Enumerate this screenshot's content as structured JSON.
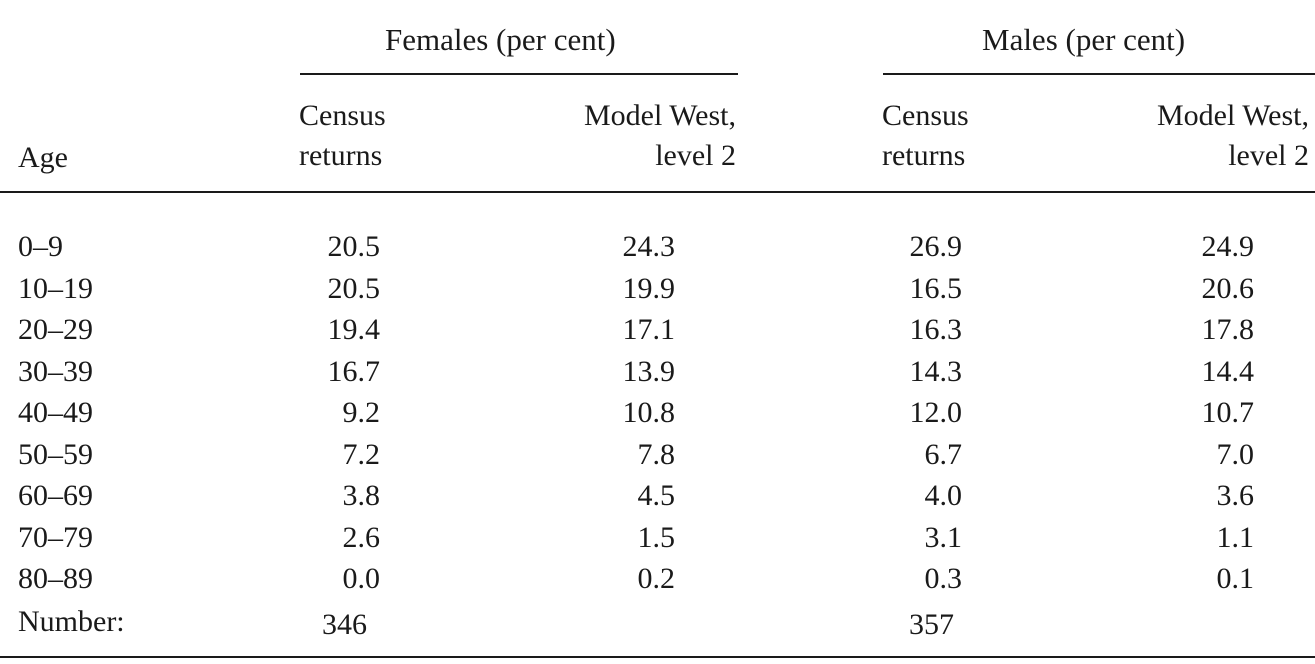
{
  "table": {
    "group_headers": {
      "females": "Females (per cent)",
      "males": "Males (per cent)"
    },
    "column_headers": {
      "age": "Age",
      "census_line1": "Census",
      "census_line2": "returns",
      "model_line1": "Model West,",
      "model_line2": "level 2"
    },
    "rows": [
      {
        "age": "0–9",
        "f_census": "20.5",
        "f_model": "24.3",
        "m_census": "26.9",
        "m_model": "24.9"
      },
      {
        "age": "10–19",
        "f_census": "20.5",
        "f_model": "19.9",
        "m_census": "16.5",
        "m_model": "20.6"
      },
      {
        "age": "20–29",
        "f_census": "19.4",
        "f_model": "17.1",
        "m_census": "16.3",
        "m_model": "17.8"
      },
      {
        "age": "30–39",
        "f_census": "16.7",
        "f_model": "13.9",
        "m_census": "14.3",
        "m_model": "14.4"
      },
      {
        "age": "40–49",
        "f_census": "9.2",
        "f_model": "10.8",
        "m_census": "12.0",
        "m_model": "10.7"
      },
      {
        "age": "50–59",
        "f_census": "7.2",
        "f_model": "7.8",
        "m_census": "6.7",
        "m_model": "7.0"
      },
      {
        "age": "60–69",
        "f_census": "3.8",
        "f_model": "4.5",
        "m_census": "4.0",
        "m_model": "3.6"
      },
      {
        "age": "70–79",
        "f_census": "2.6",
        "f_model": "1.5",
        "m_census": "3.1",
        "m_model": "1.1"
      },
      {
        "age": "80–89",
        "f_census": "0.0",
        "f_model": "0.2",
        "m_census": "0.3",
        "m_model": "0.1"
      }
    ],
    "number_row": {
      "label": "Number:",
      "f_census": "346",
      "m_census": "357"
    }
  }
}
